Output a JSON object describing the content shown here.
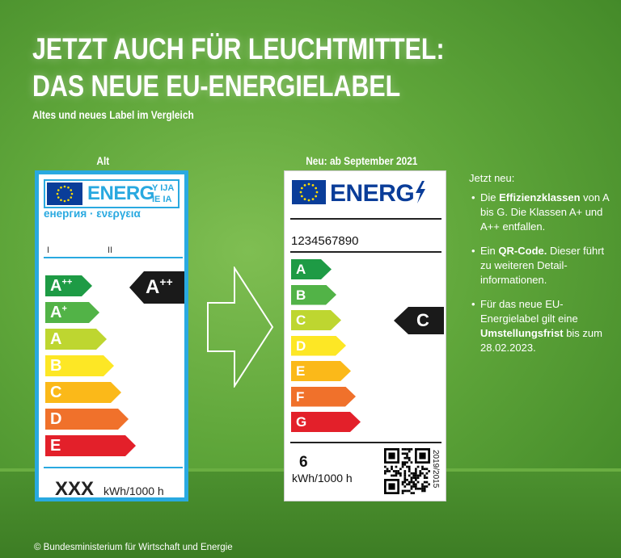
{
  "title_line1": "JETZT AUCH FÜR LEUCHTMITTEL:",
  "title_line2": "DAS NEUE EU-ENERGIELABEL",
  "subtitle": "Altes und neues Label im Vergleich",
  "old_label": {
    "heading": "Alt",
    "energ": "ENERG",
    "small_top": "Y IJA",
    "small_bottom": "IE IA",
    "greek": "енергия · ενεργεια",
    "roman_1": "I",
    "roman_2": "II",
    "classes": [
      {
        "letter": "A",
        "sup": "++",
        "color": "#1e9b45"
      },
      {
        "letter": "A",
        "sup": "+",
        "color": "#52b347"
      },
      {
        "letter": "A",
        "sup": "",
        "color": "#bed630"
      },
      {
        "letter": "B",
        "sup": "",
        "color": "#fde725"
      },
      {
        "letter": "C",
        "sup": "",
        "color": "#fbb919"
      },
      {
        "letter": "D",
        "sup": "",
        "color": "#f0712b"
      },
      {
        "letter": "E",
        "sup": "",
        "color": "#e3202a"
      }
    ],
    "rating_letter": "A",
    "rating_sup": "++",
    "consumption": "XXX",
    "unit": "kWh/1000 h"
  },
  "new_label": {
    "heading": "Neu: ab September 2021",
    "energ": "ENERG",
    "product_number": "1234567890",
    "classes": [
      {
        "letter": "A",
        "color": "#1e9b45"
      },
      {
        "letter": "B",
        "color": "#52b347"
      },
      {
        "letter": "C",
        "color": "#bed630"
      },
      {
        "letter": "D",
        "color": "#fde725"
      },
      {
        "letter": "E",
        "color": "#fbb919"
      },
      {
        "letter": "F",
        "color": "#f0712b"
      },
      {
        "letter": "G",
        "color": "#e3202a"
      }
    ],
    "rating_letter": "C",
    "consumption": "6",
    "unit": "kWh/1000 h",
    "regulation": "2019/2015"
  },
  "side": {
    "intro": "Jetzt neu:",
    "b1_pre": "Die ",
    "b1_bold": "Effizienzklassen",
    "b1_post": " von A bis G. Die Klassen A+ und A++ entfallen.",
    "b2_pre": "Ein ",
    "b2_bold": "QR-Code.",
    "b2_post": " Dieser führt zu weiteren Detail-informationen.",
    "b3_pre": "Für das neue EU-Energielabel gilt eine ",
    "b3_bold": "Umstellungsfrist",
    "b3_post": " bis zum 28.02.2023."
  },
  "copyright": "© Bundesministerium für Wirtschaft und Energie",
  "colors": {
    "label_blue": "#29a9e0",
    "eu_blue": "#0a3d99",
    "eu_star": "#ffdd00"
  }
}
